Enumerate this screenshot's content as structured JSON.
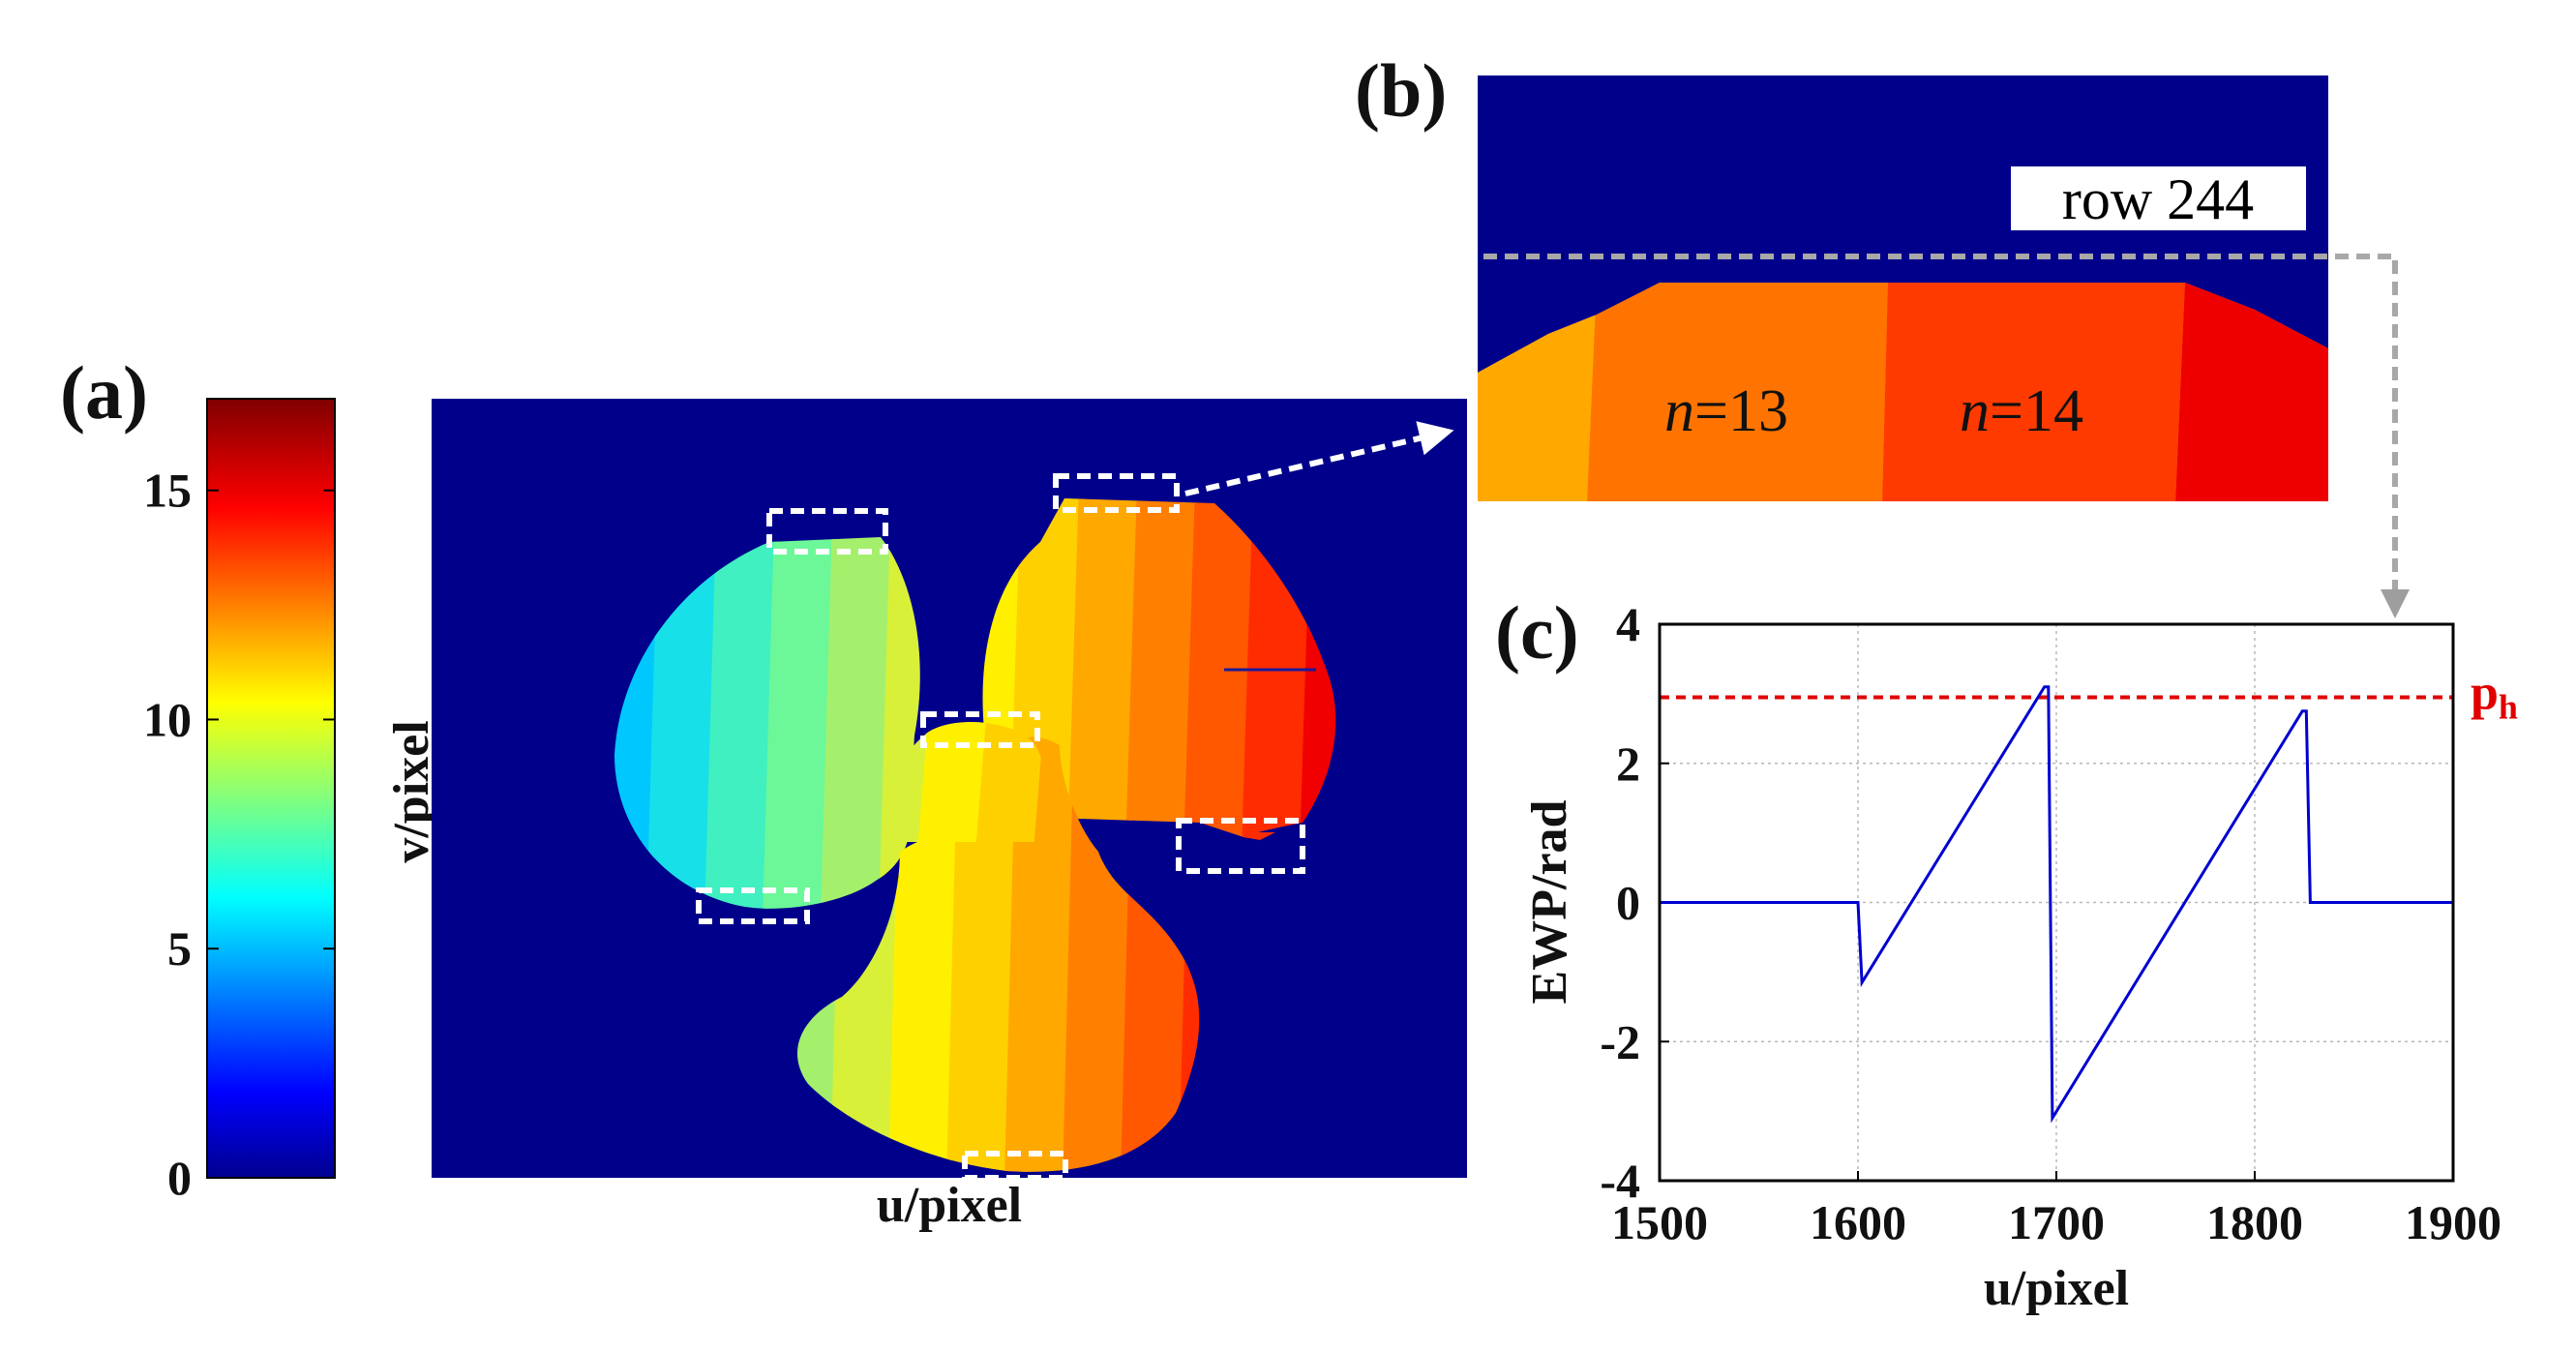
{
  "panels": {
    "a": {
      "label": "(a)",
      "xlabel": "u/pixel",
      "ylabel": "v/pixel",
      "colorbar": {
        "ticks": [
          "0",
          "5",
          "10",
          "15"
        ],
        "tick_values": [
          0,
          5,
          10,
          15
        ],
        "range": [
          0,
          17
        ],
        "colormap": "jet"
      },
      "fringe_colors": [
        "#00c8ff",
        "#18e0e8",
        "#40f0c0",
        "#6cf898",
        "#a4f06c",
        "#d8f038",
        "#fff000",
        "#ffd000",
        "#ffa800",
        "#ff8000",
        "#ff5800",
        "#ff2c00",
        "#f00000",
        "#b80000",
        "#800000"
      ],
      "background_color": "#00008b"
    },
    "b": {
      "label": "(b)",
      "row_label": "row 244",
      "fringe_labels": [
        {
          "n_symbol": "n",
          "value": "=13"
        },
        {
          "n_symbol": "n",
          "value": "=14"
        }
      ],
      "colors": [
        "#ffa800",
        "#ff7400",
        "#ff3a00",
        "#ee0000"
      ]
    },
    "c": {
      "label": "(c)",
      "ph_label": "p",
      "ph_sub": "h",
      "ph_color": "#e00000",
      "line_color": "#0000d0"
    }
  },
  "chart_data": {
    "type": "line",
    "title": "",
    "xlabel": "u/pixel",
    "ylabel": "EWP/rad",
    "xlim": [
      1500,
      1900
    ],
    "ylim": [
      -4,
      4
    ],
    "xticks": [
      1500,
      1600,
      1700,
      1800,
      1900
    ],
    "yticks": [
      4,
      2,
      0,
      -2,
      -4
    ],
    "grid": true,
    "series": [
      {
        "x": [
          1500,
          1600,
          1602,
          1694,
          1696,
          1698,
          1824,
          1826,
          1828,
          1900
        ],
        "y": [
          0,
          0,
          -1.15,
          3.1,
          3.1,
          -3.1,
          2.75,
          2.75,
          0,
          0
        ]
      }
    ],
    "threshold": {
      "y": 2.95
    }
  }
}
